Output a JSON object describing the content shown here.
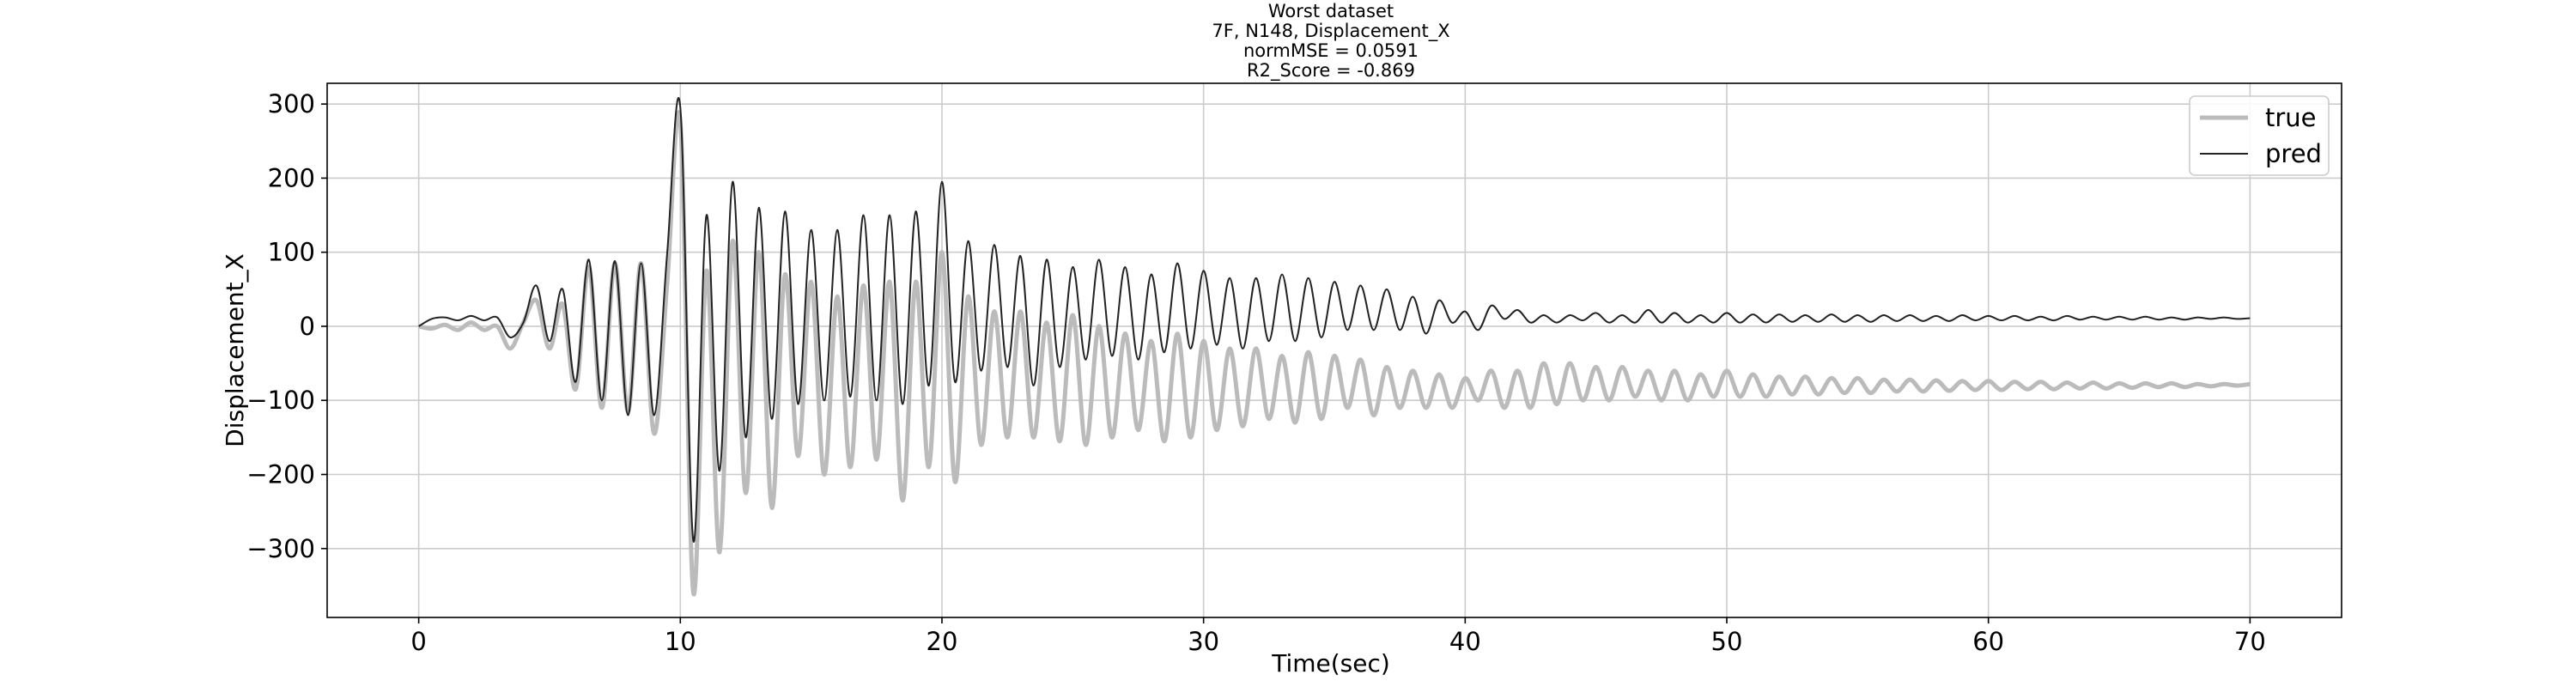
{
  "chart_data": {
    "type": "line",
    "title": [
      "Worst dataset",
      "7F, N148, Displacement_X",
      "normMSE = 0.0591",
      "R2_Score = -0.869"
    ],
    "xlabel": "Time(sec)",
    "ylabel": "Displacement_X",
    "x": [
      0,
      0.5,
      1,
      1.5,
      2,
      2.5,
      3,
      3.5,
      4,
      4.5,
      5,
      5.5,
      6,
      6.5,
      7,
      7.5,
      8,
      8.5,
      9,
      9.5,
      10,
      10.5,
      11,
      11.5,
      12,
      12.5,
      13,
      13.5,
      14,
      14.5,
      15,
      15.5,
      16,
      16.5,
      17,
      17.5,
      18,
      18.5,
      19,
      19.5,
      20,
      20.5,
      21,
      21.5,
      22,
      22.5,
      23,
      23.5,
      24,
      24.5,
      25,
      25.5,
      26,
      26.5,
      27,
      27.5,
      28,
      28.5,
      29,
      29.5,
      30,
      30.5,
      31,
      31.5,
      32,
      32.5,
      33,
      33.5,
      34,
      34.5,
      35,
      35.5,
      36,
      36.5,
      37,
      37.5,
      38,
      38.5,
      39,
      39.5,
      40,
      40.5,
      41,
      41.5,
      42,
      42.5,
      43,
      43.5,
      44,
      44.5,
      45,
      45.5,
      46,
      46.5,
      47,
      47.5,
      48,
      48.5,
      49,
      49.5,
      50,
      50.5,
      51,
      51.5,
      52,
      52.5,
      53,
      53.5,
      54,
      54.5,
      55,
      55.5,
      56,
      56.5,
      57,
      57.5,
      58,
      58.5,
      59,
      59.5,
      60,
      60.5,
      61,
      61.5,
      62,
      62.5,
      63,
      63.5,
      64,
      64.5,
      65,
      65.5,
      66,
      66.5,
      67,
      67.5,
      68,
      68.5,
      69,
      69.5,
      70
    ],
    "series": [
      {
        "name": "true",
        "color": "#bbbbbb",
        "width": 5,
        "values": [
          0,
          -3,
          2,
          -5,
          5,
          -5,
          0,
          -30,
          5,
          35,
          -30,
          30,
          -85,
          80,
          -110,
          85,
          -115,
          85,
          -145,
          60,
          275,
          -360,
          75,
          -305,
          115,
          -225,
          100,
          -245,
          70,
          -175,
          60,
          -200,
          40,
          -190,
          55,
          -180,
          60,
          -235,
          60,
          -190,
          100,
          -210,
          40,
          -160,
          20,
          -150,
          20,
          -150,
          5,
          -155,
          15,
          -160,
          0,
          -150,
          -10,
          -140,
          -20,
          -155,
          -10,
          -150,
          -20,
          -140,
          -30,
          -135,
          -30,
          -125,
          -40,
          -130,
          -35,
          -125,
          -40,
          -110,
          -45,
          -120,
          -55,
          -110,
          -60,
          -110,
          -65,
          -110,
          -70,
          -100,
          -60,
          -110,
          -60,
          -110,
          -50,
          -105,
          -50,
          -100,
          -55,
          -100,
          -55,
          -95,
          -60,
          -100,
          -60,
          -100,
          -65,
          -95,
          -60,
          -95,
          -65,
          -95,
          -68,
          -92,
          -68,
          -92,
          -70,
          -90,
          -70,
          -90,
          -72,
          -88,
          -72,
          -88,
          -73,
          -87,
          -74,
          -86,
          -74,
          -86,
          -75,
          -85,
          -75,
          -85,
          -76,
          -84,
          -76,
          -84,
          -77,
          -83,
          -77,
          -82,
          -77,
          -82,
          -78,
          -81,
          -78,
          -80,
          -78
        ]
      },
      {
        "name": "pred",
        "color": "#222222",
        "width": 2,
        "values": [
          0,
          10,
          12,
          8,
          14,
          8,
          12,
          -15,
          5,
          55,
          -20,
          50,
          -75,
          90,
          -100,
          88,
          -120,
          85,
          -120,
          100,
          295,
          -290,
          150,
          -195,
          195,
          -150,
          160,
          -125,
          155,
          -105,
          130,
          -100,
          130,
          -95,
          150,
          -100,
          150,
          -105,
          155,
          -80,
          195,
          -75,
          115,
          -60,
          110,
          -55,
          95,
          -80,
          90,
          -55,
          80,
          -45,
          90,
          -40,
          80,
          -45,
          70,
          -35,
          85,
          -30,
          75,
          -25,
          65,
          -30,
          65,
          -20,
          70,
          -20,
          65,
          -15,
          60,
          -5,
          55,
          -5,
          50,
          -5,
          40,
          -10,
          35,
          5,
          20,
          -5,
          28,
          10,
          22,
          5,
          15,
          5,
          15,
          8,
          18,
          5,
          15,
          5,
          22,
          5,
          18,
          5,
          15,
          5,
          18,
          5,
          16,
          5,
          16,
          6,
          15,
          6,
          16,
          6,
          15,
          6,
          15,
          7,
          15,
          7,
          14,
          7,
          15,
          8,
          14,
          8,
          14,
          8,
          13,
          8,
          14,
          9,
          13,
          9,
          13,
          9,
          13,
          9,
          12,
          9,
          12,
          10,
          12,
          10,
          11
        ]
      }
    ],
    "xlim": [
      -3.5,
      73.5
    ],
    "ylim": [
      -393,
      328
    ],
    "xticks": [
      0,
      10,
      20,
      30,
      40,
      50,
      60,
      70
    ],
    "yticks": [
      {
        "value": -300,
        "label": "−300"
      },
      {
        "value": -200,
        "label": "−200"
      },
      {
        "value": -100,
        "label": "−100"
      },
      0,
      100,
      200,
      300
    ],
    "grid": true,
    "legend": "upper right"
  }
}
